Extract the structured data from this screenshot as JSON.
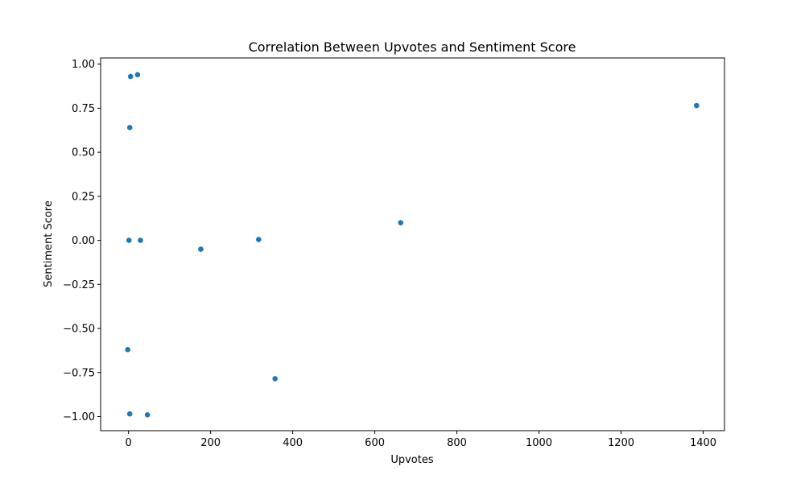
{
  "chart_data": {
    "type": "scatter",
    "title": "Correlation Between Upvotes and Sentiment Score",
    "xlabel": "Upvotes",
    "ylabel": "Sentiment Score",
    "xlim": [
      -68,
      1452
    ],
    "ylim": [
      -1.08,
      1.035
    ],
    "xticks": [
      0,
      200,
      400,
      600,
      800,
      1000,
      1200,
      1400
    ],
    "xtick_labels": [
      "0",
      "200",
      "400",
      "600",
      "800",
      "1000",
      "1200",
      "1400"
    ],
    "yticks": [
      1.0,
      0.75,
      0.5,
      0.25,
      0.0,
      -0.25,
      -0.5,
      -0.75,
      -1.0
    ],
    "ytick_labels": [
      "1.00",
      "0.75",
      "0.50",
      "0.25",
      "0.00",
      "−0.25",
      "−0.50",
      "−0.75",
      "−1.00"
    ],
    "grid": false,
    "marker_color": "#1f77b4",
    "points": [
      {
        "x": 5,
        "y": 0.93
      },
      {
        "x": 22,
        "y": 0.94
      },
      {
        "x": 3,
        "y": 0.64
      },
      {
        "x": 1,
        "y": 0.0
      },
      {
        "x": 29,
        "y": 0.0
      },
      {
        "x": 176,
        "y": -0.05
      },
      {
        "x": 317,
        "y": 0.005
      },
      {
        "x": 663,
        "y": 0.1
      },
      {
        "x": 1384,
        "y": 0.765
      },
      {
        "x": -2,
        "y": -0.62
      },
      {
        "x": 357,
        "y": -0.785
      },
      {
        "x": 3,
        "y": -0.985
      },
      {
        "x": 46,
        "y": -0.99
      }
    ]
  }
}
